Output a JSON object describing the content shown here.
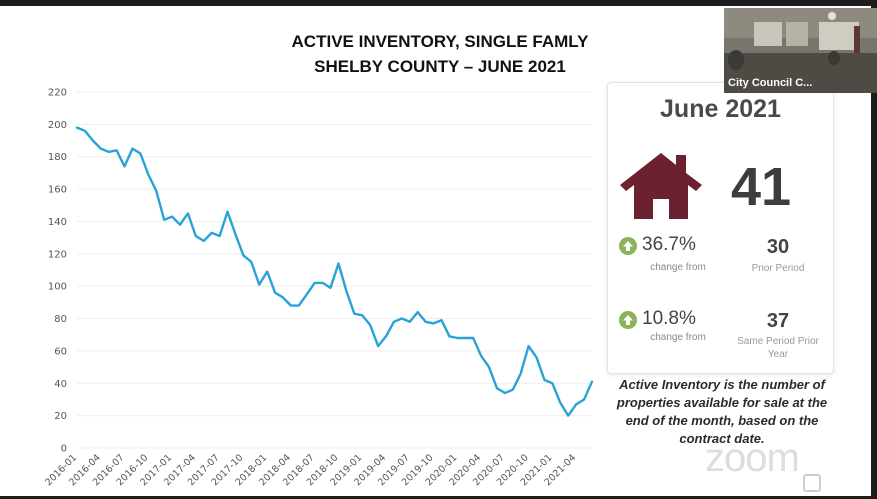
{
  "title_line1": "ACTIVE INVENTORY, SINGLE FAMLY",
  "title_line2": "SHELBY COUNTY – JUNE 2021",
  "chart_data": {
    "type": "line",
    "ylim": [
      0,
      220
    ],
    "yticks": [
      0,
      20,
      40,
      60,
      80,
      100,
      120,
      140,
      160,
      180,
      200,
      220
    ],
    "xtick_labels": [
      "2016-01",
      "2016-04",
      "2016-07",
      "2016-10",
      "2017-01",
      "2017-04",
      "2017-07",
      "2017-10",
      "2018-01",
      "2018-04",
      "2018-07",
      "2018-10",
      "2019-01",
      "2019-04",
      "2019-07",
      "2019-10",
      "2020-01",
      "2020-04",
      "2020-07",
      "2020-10",
      "2021-01",
      "2021-04"
    ],
    "line_color": "#29a3d6",
    "grid": true,
    "series": [
      {
        "x": [
          "2016-01",
          "2016-02",
          "2016-03",
          "2016-04",
          "2016-05",
          "2016-06",
          "2016-07",
          "2016-08",
          "2016-09",
          "2016-10",
          "2016-11",
          "2016-12",
          "2017-01",
          "2017-02",
          "2017-03",
          "2017-04",
          "2017-05",
          "2017-06",
          "2017-07",
          "2017-08",
          "2017-09",
          "2017-10",
          "2017-11",
          "2017-12",
          "2018-01",
          "2018-02",
          "2018-03",
          "2018-04",
          "2018-05",
          "2018-06",
          "2018-07",
          "2018-08",
          "2018-09",
          "2018-10",
          "2018-11",
          "2018-12",
          "2019-01",
          "2019-02",
          "2019-03",
          "2019-04",
          "2019-05",
          "2019-06",
          "2019-07",
          "2019-08",
          "2019-09",
          "2019-10",
          "2019-11",
          "2019-12",
          "2020-01",
          "2020-02",
          "2020-03",
          "2020-04",
          "2020-05",
          "2020-06",
          "2020-07",
          "2020-08",
          "2020-09",
          "2020-10",
          "2020-11",
          "2020-12",
          "2021-01",
          "2021-02",
          "2021-03",
          "2021-04",
          "2021-05",
          "2021-06"
        ],
        "values": [
          198,
          196,
          190,
          185,
          183,
          184,
          174,
          185,
          182,
          169,
          159,
          141,
          143,
          138,
          145,
          131,
          128,
          133,
          131,
          146,
          132,
          119,
          115,
          101,
          109,
          96,
          93,
          88,
          88,
          95,
          102,
          102,
          99,
          114,
          97,
          83,
          82,
          76,
          63,
          69,
          78,
          80,
          78,
          84,
          78,
          77,
          79,
          69,
          68,
          68,
          68,
          57,
          50,
          37,
          34,
          36,
          46,
          63,
          56,
          42,
          40,
          28,
          20,
          27,
          30,
          41
        ]
      }
    ]
  },
  "card": {
    "month": "June 2021",
    "icon": "house-icon",
    "icon_color": "#6b2130",
    "value": "41",
    "stats": [
      {
        "pct": "36.7%",
        "sub": "change from",
        "num": "30",
        "label": "Prior Period",
        "icon": "arrow-up-circle-icon",
        "icon_color": "#8db35a"
      },
      {
        "pct": "10.8%",
        "sub": "change from",
        "num": "37",
        "label": "Same Period Prior Year",
        "icon": "arrow-up-circle-icon",
        "icon_color": "#8db35a"
      }
    ]
  },
  "note": "Active Inventory is the number of properties available for sale at the end of the month, based on the contract date.",
  "video": {
    "label": "City Council C..."
  },
  "watermark": "zoom"
}
